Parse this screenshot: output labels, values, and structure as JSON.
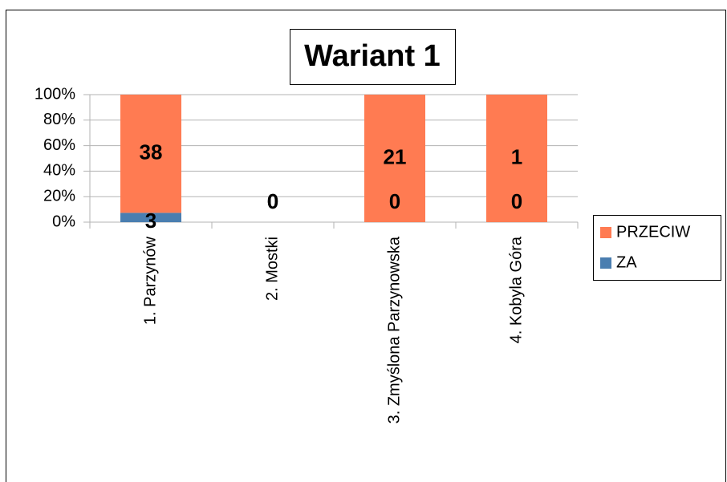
{
  "chart_data": {
    "type": "bar",
    "stacking": "percent",
    "title": "Wariant 1",
    "categories": [
      "1. Parzynów",
      "2. Mostki",
      "3. Zmyślona Parzynowska",
      "4. Kobyla Góra"
    ],
    "series": [
      {
        "name": "ZA",
        "color": "#4a7eb0",
        "values": [
          3,
          0,
          0,
          0
        ]
      },
      {
        "name": "PRZECIW",
        "color": "#ff7b52",
        "values": [
          38,
          0,
          21,
          1
        ]
      }
    ],
    "ylim": [
      0,
      100
    ],
    "yticks": [
      {
        "value": 0,
        "label": "0%"
      },
      {
        "value": 20,
        "label": "20%"
      },
      {
        "value": 40,
        "label": "40%"
      },
      {
        "value": 60,
        "label": "60%"
      },
      {
        "value": 80,
        "label": "80%"
      },
      {
        "value": 100,
        "label": "100%"
      }
    ],
    "grid": true,
    "legend": "right"
  }
}
